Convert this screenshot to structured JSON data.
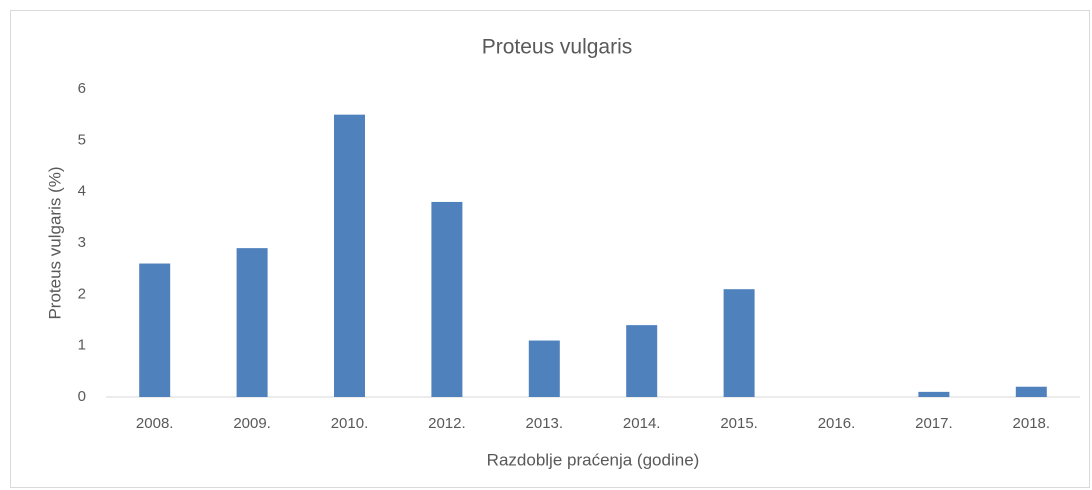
{
  "chart_data": {
    "type": "bar",
    "title": "Proteus vulgaris",
    "x_label": "Razdoblje praćenja (godine)",
    "y_label": "Proteus vulgaris (%)",
    "categories": [
      "2008.",
      "2009.",
      "2010.",
      "2012.",
      "2013.",
      "2014.",
      "2015.",
      "2016.",
      "2017.",
      "2018."
    ],
    "values": [
      2.6,
      2.9,
      5.5,
      3.8,
      1.1,
      1.4,
      2.1,
      0,
      0.1,
      0.2
    ],
    "color": "#4f81bd",
    "ylim": [
      0,
      6
    ],
    "yticks": [
      0,
      1,
      2,
      3,
      4,
      5,
      6
    ],
    "grid": false
  }
}
